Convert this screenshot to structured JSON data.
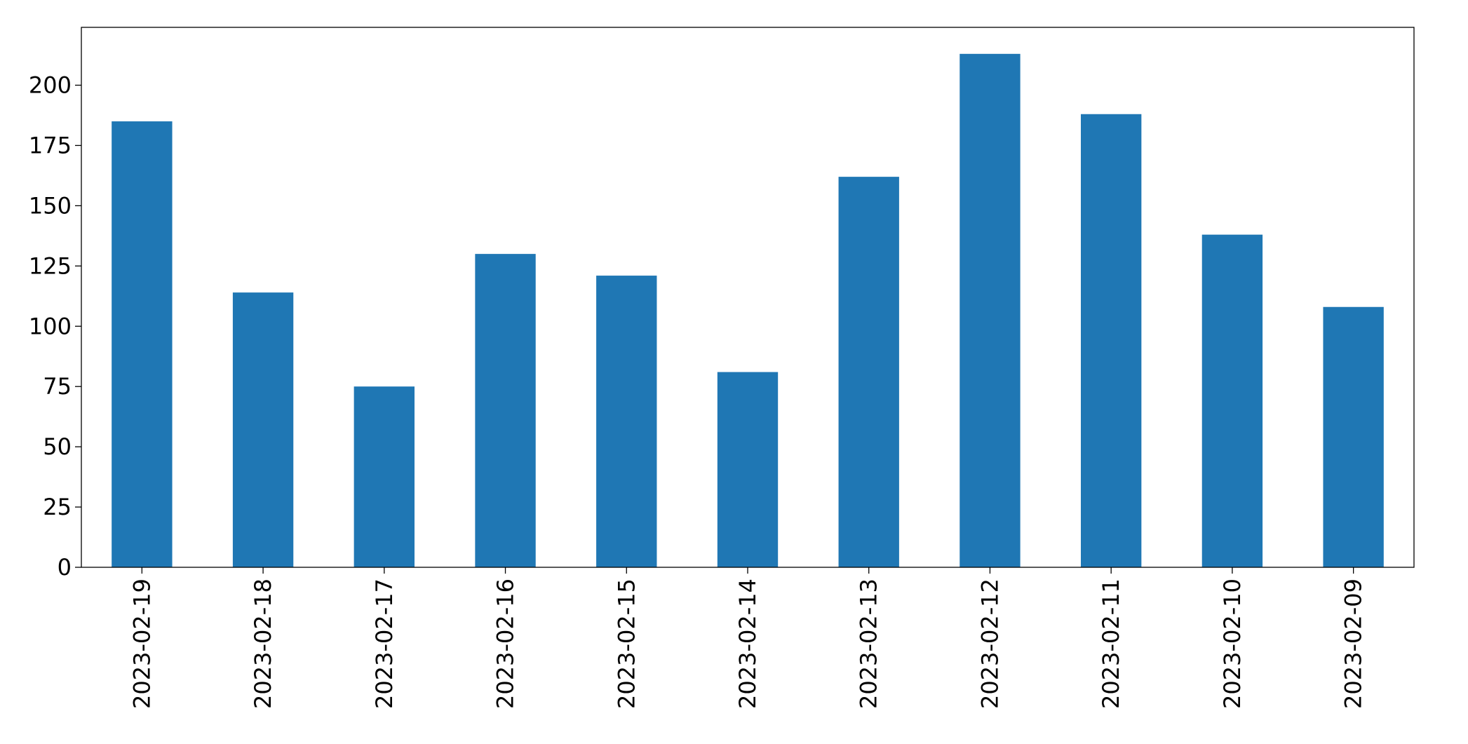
{
  "chart_data": {
    "type": "bar",
    "categories": [
      "2023-02-19",
      "2023-02-18",
      "2023-02-17",
      "2023-02-16",
      "2023-02-15",
      "2023-02-14",
      "2023-02-13",
      "2023-02-12",
      "2023-02-11",
      "2023-02-10",
      "2023-02-09"
    ],
    "values": [
      185,
      114,
      75,
      130,
      121,
      81,
      162,
      213,
      188,
      138,
      108
    ],
    "color": "#1f77b4",
    "ylim": [
      0,
      224
    ],
    "yticks": [
      0,
      25,
      50,
      75,
      100,
      125,
      150,
      175,
      200
    ],
    "grid": false
  }
}
